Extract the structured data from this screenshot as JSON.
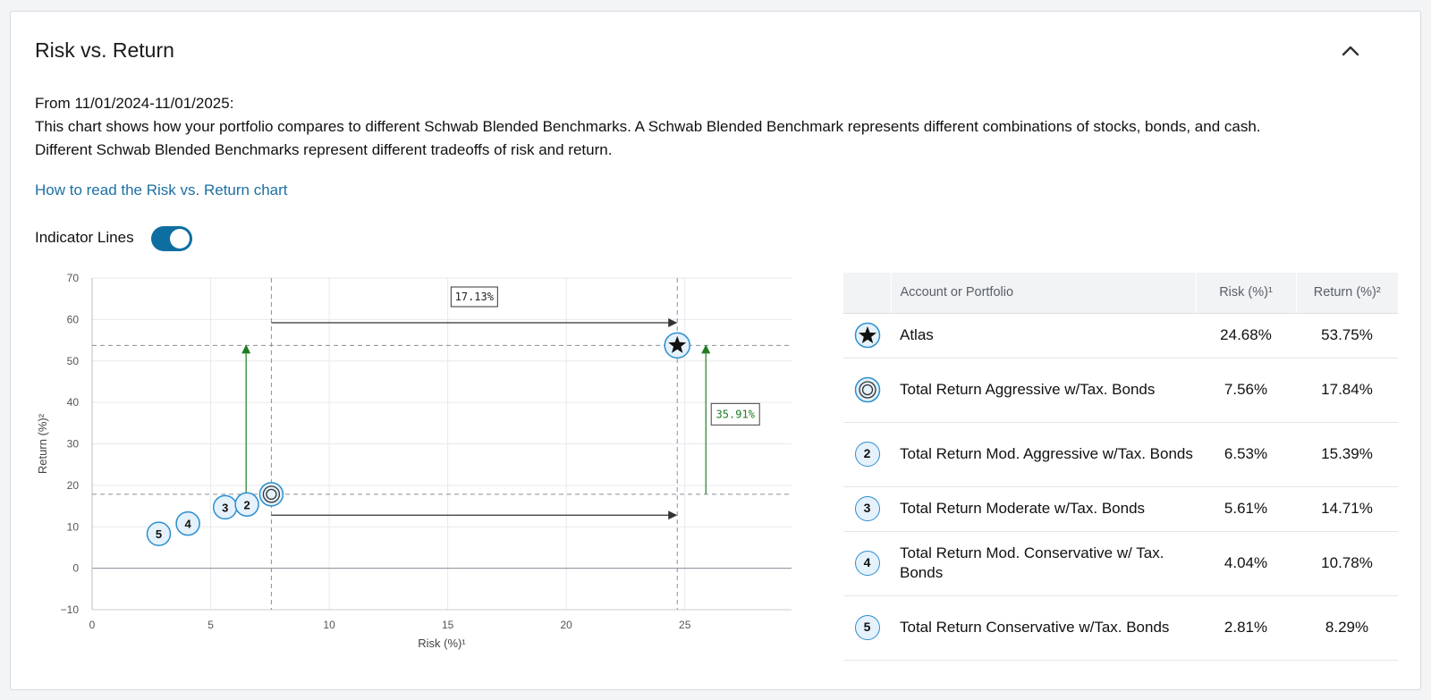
{
  "card": {
    "title": "Risk vs. Return",
    "date_range": "From 11/01/2024-11/01/2025:",
    "description_1": "This chart shows how your portfolio compares to different Schwab Blended Benchmarks. A Schwab Blended Benchmark represents different combinations of stocks, bonds, and cash.",
    "description_2": "Different Schwab Blended Benchmarks represent different tradeoffs of risk and return.",
    "help_link": "How to read the Risk vs. Return chart",
    "indicator_lines_label": "Indicator Lines",
    "indicator_lines_on": true
  },
  "chart_data": {
    "type": "scatter",
    "xlabel": "Risk (%)¹",
    "ylabel": "Return (%)²",
    "xlim": [
      0,
      29.5
    ],
    "ylim": [
      -10,
      70
    ],
    "x_ticks": [
      0,
      5,
      10,
      15,
      20,
      25
    ],
    "y_ticks": [
      -10,
      0,
      10,
      20,
      30,
      40,
      50,
      60,
      70
    ],
    "grid": true,
    "points": [
      {
        "marker": "star",
        "x": 24.68,
        "y": 53.75
      },
      {
        "marker": "rings",
        "x": 7.56,
        "y": 17.84
      },
      {
        "marker": "2",
        "x": 6.53,
        "y": 15.39
      },
      {
        "marker": "3",
        "x": 5.61,
        "y": 14.71
      },
      {
        "marker": "4",
        "x": 4.04,
        "y": 10.78
      },
      {
        "marker": "5",
        "x": 2.81,
        "y": 8.29
      }
    ],
    "risk_difference_label": "17.13%",
    "return_difference_label": "35.91%",
    "colors": {
      "return_indicator": "#1e7d22",
      "marker_border": "#2a8fd0",
      "marker_fill": "#e5f1fb"
    }
  },
  "table": {
    "headers": {
      "name": "Account or Portfolio",
      "risk": "Risk (%)¹",
      "return": "Return (%)²"
    },
    "rows": [
      {
        "icon": "star",
        "name": "Atlas",
        "risk": "24.68%",
        "return": "53.75%"
      },
      {
        "icon": "rings",
        "name": "Total Return Aggressive w/Tax. Bonds",
        "risk": "7.56%",
        "return": "17.84%"
      },
      {
        "icon": "2",
        "name": "Total Return Mod. Aggressive w/Tax. Bonds",
        "risk": "6.53%",
        "return": "15.39%"
      },
      {
        "icon": "3",
        "name": "Total Return Moderate w/Tax. Bonds",
        "risk": "5.61%",
        "return": "14.71%"
      },
      {
        "icon": "4",
        "name": "Total Return Mod. Conservative w/ Tax. Bonds",
        "risk": "4.04%",
        "return": "10.78%"
      },
      {
        "icon": "5",
        "name": "Total Return Conservative w/Tax. Bonds",
        "risk": "2.81%",
        "return": "8.29%"
      }
    ]
  }
}
